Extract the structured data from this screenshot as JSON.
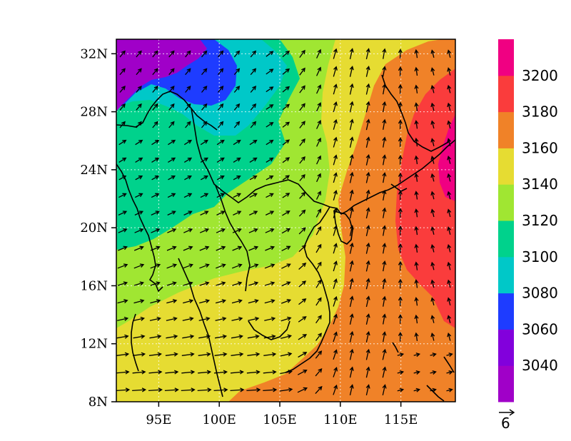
{
  "chart_data": {
    "type": "heatmap",
    "title": "",
    "xlabel": "",
    "ylabel": "",
    "xlim": [
      91.5,
      119.5
    ],
    "ylim": [
      8,
      33
    ],
    "x_ticks": [
      {
        "value": 95,
        "label": "95E"
      },
      {
        "value": 100,
        "label": "100E"
      },
      {
        "value": 105,
        "label": "105E"
      },
      {
        "value": 110,
        "label": "110E"
      },
      {
        "value": 115,
        "label": "115E"
      }
    ],
    "y_ticks": [
      {
        "value": 8,
        "label": "8N"
      },
      {
        "value": 12,
        "label": "12N"
      },
      {
        "value": 16,
        "label": "16N"
      },
      {
        "value": 20,
        "label": "20N"
      },
      {
        "value": 24,
        "label": "24N"
      },
      {
        "value": 28,
        "label": "28N"
      },
      {
        "value": 32,
        "label": "32N"
      }
    ],
    "grid": true,
    "colorbar": {
      "placement": "right",
      "levels": [
        3040,
        3060,
        3080,
        3100,
        3120,
        3140,
        3160,
        3180,
        3200
      ],
      "labels": [
        "3040",
        "3060",
        "3080",
        "3100",
        "3120",
        "3140",
        "3160",
        "3180",
        "3200"
      ],
      "colors": [
        "#a000c8",
        "#8200dc",
        "#1e3cff",
        "#00c8c8",
        "#00d28c",
        "#a0e632",
        "#e6dc32",
        "#f08228",
        "#fa3c3c",
        "#f00082"
      ]
    },
    "reference_vector": {
      "value": 6,
      "label": "6"
    },
    "field_regions": [
      {
        "level": 3160,
        "color": "#e6dc32"
      },
      {
        "level": 3140,
        "color": "#a0e632"
      },
      {
        "level": 3100,
        "color": "#00d28c"
      },
      {
        "level": 3080,
        "color": "#00c8c8"
      },
      {
        "level": 3060,
        "color": "#1e3cff"
      },
      {
        "level": 3040,
        "color": "#a000c8"
      },
      {
        "level": 3180,
        "color": "#f08228"
      },
      {
        "level": 3200,
        "color": "#fa3c3c"
      },
      {
        "level": 3220,
        "color": "#f00082"
      }
    ]
  }
}
